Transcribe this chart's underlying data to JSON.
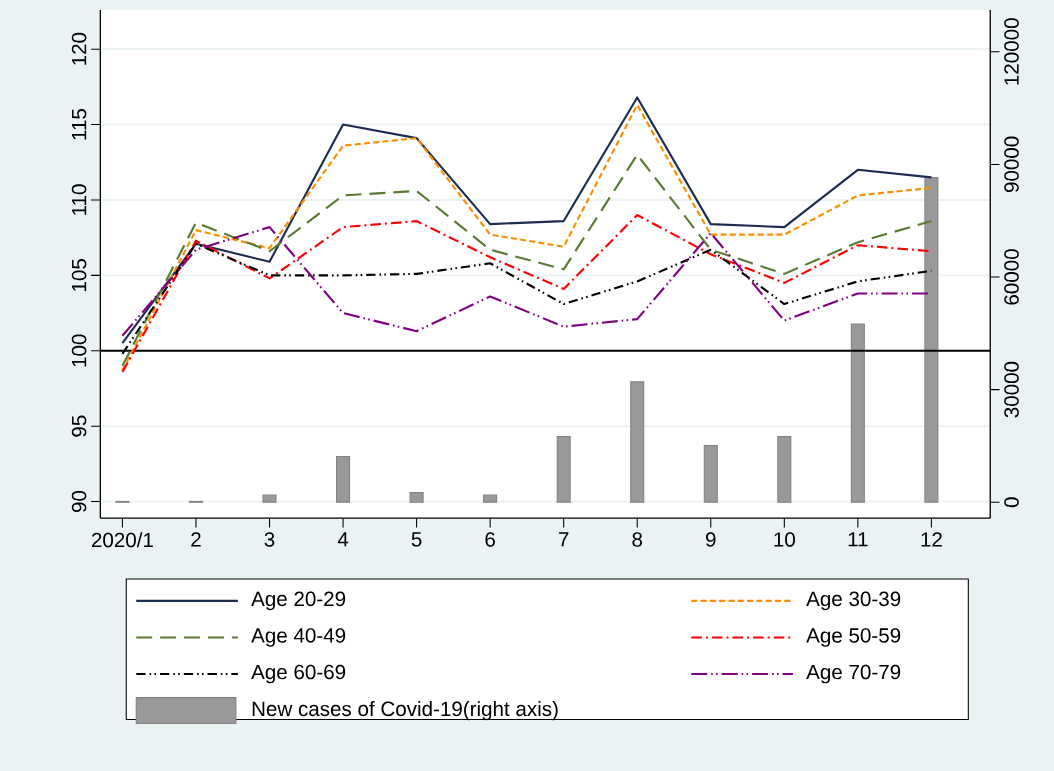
{
  "chart_data": {
    "type": "line",
    "categories": [
      "2020/1",
      "2",
      "3",
      "4",
      "5",
      "6",
      "7",
      "8",
      "9",
      "10",
      "11",
      "12"
    ],
    "series": [
      {
        "name": "Age 20-29",
        "color": "#1c2b50",
        "line_style": "solid",
        "values": [
          100.5,
          107.1,
          105.9,
          115.0,
          114.1,
          108.4,
          108.6,
          116.8,
          108.4,
          108.2,
          112.0,
          111.5
        ]
      },
      {
        "name": "Age 30-39",
        "color": "#ff8c00",
        "line_style": "dashed",
        "values": [
          98.7,
          108.0,
          106.8,
          113.6,
          114.1,
          107.7,
          106.9,
          116.3,
          107.7,
          107.7,
          110.3,
          110.8
        ]
      },
      {
        "name": "Age 40-49",
        "color": "#5a7a32",
        "line_style": "longdash",
        "values": [
          99.0,
          108.5,
          106.6,
          110.3,
          110.6,
          106.7,
          105.4,
          113.0,
          106.7,
          105.1,
          107.2,
          108.6
        ]
      },
      {
        "name": "Age 50-59",
        "color": "#ff0000",
        "line_style": "dashdot",
        "values": [
          98.6,
          107.3,
          104.8,
          108.2,
          108.6,
          106.2,
          104.1,
          109.0,
          106.4,
          104.5,
          107.0,
          106.6
        ]
      },
      {
        "name": "Age 60-69",
        "color": "#000000",
        "line_style": "dashdotdot",
        "values": [
          99.8,
          107.1,
          105.0,
          105.0,
          105.1,
          105.8,
          103.1,
          104.6,
          106.7,
          103.1,
          104.6,
          105.3
        ]
      },
      {
        "name": "Age 70-79",
        "color": "#800080",
        "line_style": "longdashdotdot",
        "values": [
          101.0,
          106.7,
          108.2,
          102.5,
          101.3,
          103.6,
          101.6,
          102.1,
          107.8,
          102.0,
          103.8,
          103.8
        ]
      },
      {
        "name": "New cases of Covid-19(right axis)",
        "type": "bar",
        "axis": "y2",
        "color": "#999999",
        "values": [
          200,
          200,
          1900,
          12200,
          2600,
          1900,
          17500,
          32100,
          15100,
          17500,
          47500,
          86500
        ]
      }
    ],
    "ylim": [
      88.9,
      122.6
    ],
    "yticks": [
      90,
      95,
      100,
      105,
      110,
      115,
      120
    ],
    "y2lim": [
      -4250,
      131150
    ],
    "y2ticks": [
      0,
      30000,
      60000,
      90000,
      120000
    ],
    "grid": "y",
    "legend": "bottom",
    "ref_lines": [
      {
        "axis": "y",
        "value": 100,
        "color": "#000000"
      }
    ]
  }
}
